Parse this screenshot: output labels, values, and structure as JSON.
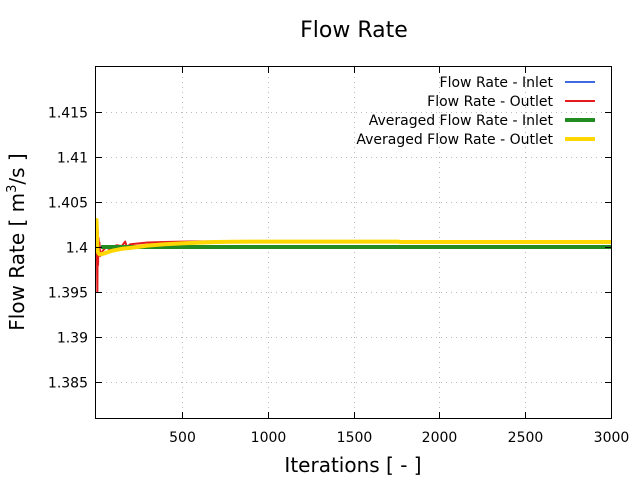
{
  "chart_data": {
    "type": "line",
    "title": "Flow Rate",
    "xlabel": "Iterations [ - ]",
    "ylabel_main": "Flow Rate [ m",
    "ylabel_sup": "3",
    "ylabel_tail": "/s ]",
    "xlim": [
      0,
      3000
    ],
    "ylim": [
      1.381,
      1.42
    ],
    "xticks": [
      500,
      1000,
      1500,
      2000,
      2500,
      3000
    ],
    "xtick_labels": [
      "500",
      "1000",
      "1500",
      "2000",
      "2500",
      "3000"
    ],
    "yticks": [
      1.385,
      1.39,
      1.395,
      1.4,
      1.405,
      1.41,
      1.415
    ],
    "ytick_labels": [
      "1.385",
      "1.39",
      "1.395",
      "1.4",
      "1.405",
      "1.41",
      "1.415"
    ],
    "grid": true,
    "legend_position": "top-right",
    "series": [
      {
        "name": "Flow Rate - Inlet",
        "color": "#4169e1",
        "width": 2,
        "x": [
          0,
          3000
        ],
        "y": [
          1.4,
          1.4
        ]
      },
      {
        "name": "Flow Rate - Outlet",
        "color": "#e41a1c",
        "width": 2,
        "x": [
          0,
          5,
          8,
          10,
          12,
          15,
          18,
          20,
          25,
          30,
          40,
          50,
          60,
          80,
          100,
          120,
          150,
          170,
          180,
          200,
          250,
          300,
          400,
          500,
          600,
          800,
          1000,
          1500,
          2000,
          2500,
          3000
        ],
        "y": [
          1.403,
          1.4,
          1.395,
          1.402,
          1.398,
          1.401,
          1.3995,
          1.4005,
          1.399,
          1.3993,
          1.3996,
          1.3998,
          1.4,
          1.3997,
          1.4,
          1.4002,
          1.4001,
          1.4006,
          1.4,
          1.4003,
          1.4004,
          1.4005,
          1.40055,
          1.4006,
          1.40062,
          1.40062,
          1.40062,
          1.40062,
          1.40062,
          1.40062,
          1.40062
        ]
      },
      {
        "name": "Averaged Flow Rate - Inlet",
        "color": "#228b22",
        "width": 4,
        "x": [
          30,
          3000
        ],
        "y": [
          1.4,
          1.4
        ]
      },
      {
        "name": "Averaged Flow Rate - Outlet",
        "color": "#ffd700",
        "width": 4,
        "x": [
          0,
          3,
          5,
          8,
          10,
          15,
          20,
          30,
          50,
          80,
          100,
          150,
          200,
          300,
          400,
          500,
          600,
          700,
          800,
          1000,
          1200,
          1500,
          1760,
          1770,
          2000,
          2500,
          3000
        ],
        "y": [
          1.4025,
          1.403,
          1.4015,
          1.4002,
          1.3995,
          1.3993,
          1.3992,
          1.3992,
          1.3993,
          1.3995,
          1.3996,
          1.3998,
          1.3999,
          1.40015,
          1.4003,
          1.4004,
          1.40048,
          1.40055,
          1.40058,
          1.4006,
          1.4006,
          1.4006,
          1.4006,
          1.40055,
          1.40055,
          1.40055,
          1.40055
        ]
      }
    ]
  }
}
